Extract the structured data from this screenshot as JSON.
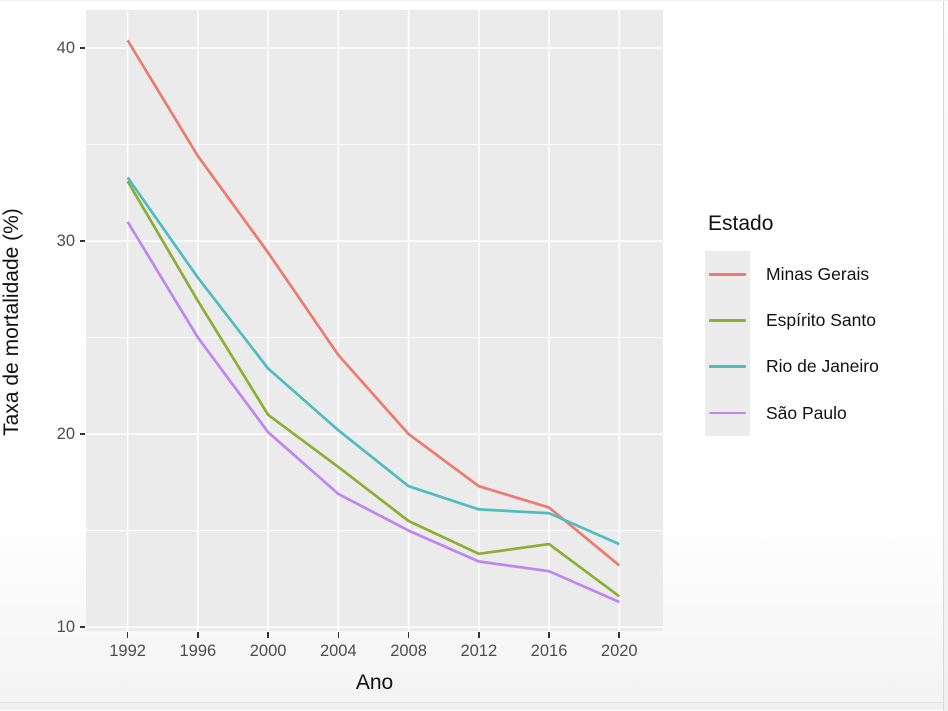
{
  "chart_data": {
    "type": "line",
    "title": "",
    "xlabel": "Ano",
    "ylabel": "Taxa de mortalidade (%)",
    "legend_title": "Estado",
    "legend_position": "right",
    "grid": true,
    "panel_bg": "#EBEBEB",
    "grid_color": "#FFFFFF",
    "x": [
      1992,
      1996,
      2000,
      2004,
      2008,
      2012,
      2016,
      2020
    ],
    "x_tick_labels": [
      "1992",
      "1996",
      "2000",
      "2004",
      "2008",
      "2012",
      "2016",
      "2020"
    ],
    "y_tick_labels": [
      "10",
      "20",
      "30",
      "40"
    ],
    "y_major": [
      10,
      20,
      30,
      40
    ],
    "y_minor": [
      15,
      25,
      35
    ],
    "xlim": [
      1989.63,
      2022.49
    ],
    "ylim": [
      9.8,
      41.97
    ],
    "series": [
      {
        "name": "Minas Gerais",
        "color": "#ED7A6F",
        "values": [
          40.4,
          34.4,
          29.4,
          24.1,
          20.0,
          17.3,
          16.2,
          13.2
        ]
      },
      {
        "name": "Espírito Santo",
        "color": "#8CAE32",
        "values": [
          33.1,
          26.9,
          21.0,
          18.3,
          15.5,
          13.8,
          14.3,
          11.6
        ]
      },
      {
        "name": "Rio de Janeiro",
        "color": "#4FBDC0",
        "values": [
          33.3,
          28.1,
          23.4,
          20.2,
          17.3,
          16.1,
          15.9,
          14.3
        ]
      },
      {
        "name": "São Paulo",
        "color": "#BE85F3",
        "values": [
          31.0,
          25.0,
          20.1,
          16.9,
          15.0,
          13.4,
          12.9,
          11.3
        ]
      }
    ]
  }
}
